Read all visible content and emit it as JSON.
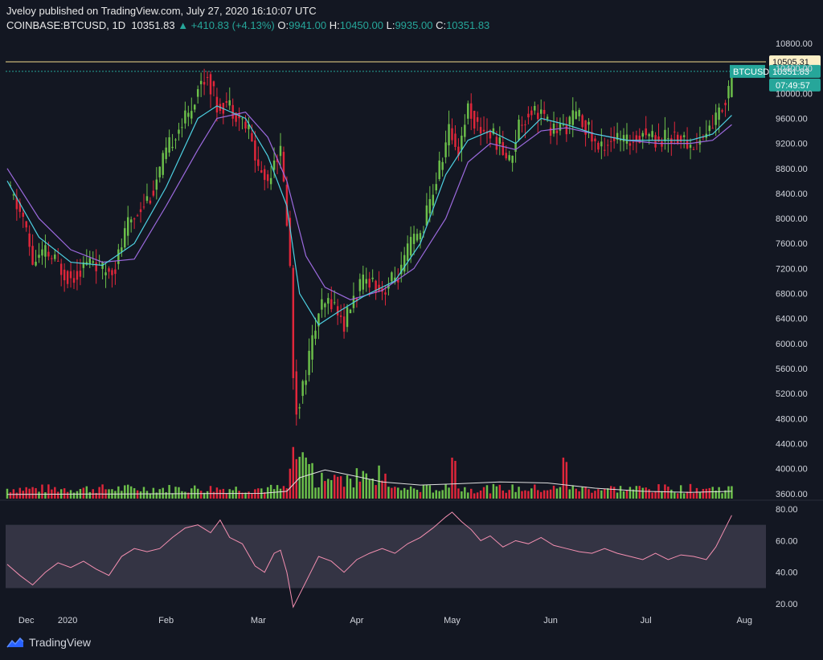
{
  "header": {
    "publish_line": "Jveloy published on TradingView.com, July 27, 2020 16:10:07 UTC",
    "symbol": "COINBASE:BTCUSD, 1D",
    "last": "10351.83",
    "change": "▲ +410.83 (+4.13%)",
    "o_label": "O:",
    "o_value": "9941.00",
    "h_label": "H:",
    "h_value": "10450.00",
    "l_label": "L:",
    "l_value": "9935.00",
    "c_label": "C:",
    "c_value": "10351.83"
  },
  "footer": {
    "brand": "TradingView"
  },
  "colors": {
    "up": "#26a69a",
    "down": "#ef5350",
    "candle_up": "#6cc04a",
    "candle_down": "#e0263a",
    "ma_fast": "#4dd0e1",
    "ma_slow": "#9c6ade",
    "rsi": "#f48fb1",
    "level": "#f0d98c"
  },
  "chart_data": {
    "type": "candlestick",
    "price_axis": {
      "ticks": [
        3600,
        4000,
        4400,
        4800,
        5200,
        5600,
        6000,
        6400,
        6800,
        7200,
        7600,
        8000,
        8400,
        8800,
        9200,
        9600,
        10000,
        10400,
        10800
      ],
      "tick_labels": [
        "3600.00",
        "4000.00",
        "4400.00",
        "4800.00",
        "5200.00",
        "5600.00",
        "6000.00",
        "6400.00",
        "6800.00",
        "7200.00",
        "7600.00",
        "8000.00",
        "8400.00",
        "8800.00",
        "9200.00",
        "9600.00",
        "10000.00",
        "10400.00",
        "10800.00"
      ],
      "range": [
        3520,
        10800
      ]
    },
    "time_axis": {
      "labels": [
        "Dec",
        "2020",
        "Feb",
        "Mar",
        "Apr",
        "May",
        "Jun",
        "Jul",
        "Aug"
      ],
      "label_day_index": [
        6,
        19,
        50,
        79,
        110,
        140,
        171,
        201,
        232
      ],
      "total_days": 238
    },
    "horizontal_level": {
      "value": 10505.31,
      "label": "10505.31"
    },
    "last_price_label": {
      "symbol": "BTCUSD",
      "value": "10351.83",
      "countdown": "07:49:57"
    },
    "price_path": [
      [
        0,
        8500
      ],
      [
        5,
        8000
      ],
      [
        8,
        7300
      ],
      [
        12,
        7450
      ],
      [
        17,
        7200
      ],
      [
        20,
        7050
      ],
      [
        24,
        7250
      ],
      [
        27,
        7350
      ],
      [
        30,
        7150
      ],
      [
        34,
        7250
      ],
      [
        38,
        7900
      ],
      [
        42,
        8200
      ],
      [
        46,
        8450
      ],
      [
        49,
        8900
      ],
      [
        53,
        9400
      ],
      [
        57,
        9650
      ],
      [
        60,
        10100
      ],
      [
        63,
        10300
      ],
      [
        66,
        9800
      ],
      [
        69,
        9850
      ],
      [
        72,
        9700
      ],
      [
        76,
        9400
      ],
      [
        79,
        8800
      ],
      [
        82,
        8600
      ],
      [
        84,
        9000
      ],
      [
        86,
        9050
      ],
      [
        88,
        8000
      ],
      [
        89,
        7200
      ],
      [
        90,
        5500
      ],
      [
        91,
        4950
      ],
      [
        93,
        5300
      ],
      [
        95,
        5800
      ],
      [
        98,
        6500
      ],
      [
        102,
        6700
      ],
      [
        106,
        6300
      ],
      [
        108,
        6600
      ],
      [
        111,
        6900
      ],
      [
        114,
        7050
      ],
      [
        118,
        6850
      ],
      [
        121,
        7000
      ],
      [
        124,
        7150
      ],
      [
        127,
        7600
      ],
      [
        130,
        7750
      ],
      [
        133,
        8250
      ],
      [
        136,
        8800
      ],
      [
        139,
        9400
      ],
      [
        142,
        9100
      ],
      [
        145,
        9800
      ],
      [
        148,
        9450
      ],
      [
        151,
        9400
      ],
      [
        154,
        9250
      ],
      [
        158,
        8900
      ],
      [
        161,
        9500
      ],
      [
        165,
        9750
      ],
      [
        168,
        9700
      ],
      [
        171,
        9400
      ],
      [
        175,
        9450
      ],
      [
        179,
        9650
      ],
      [
        182,
        9500
      ],
      [
        186,
        9100
      ],
      [
        190,
        9300
      ],
      [
        195,
        9200
      ],
      [
        200,
        9400
      ],
      [
        205,
        9250
      ],
      [
        210,
        9350
      ],
      [
        215,
        9150
      ],
      [
        219,
        9300
      ],
      [
        223,
        9600
      ],
      [
        226,
        9900
      ],
      [
        228,
        10351
      ]
    ],
    "ma_fast_path": [
      [
        0,
        8600
      ],
      [
        10,
        7700
      ],
      [
        20,
        7300
      ],
      [
        30,
        7250
      ],
      [
        40,
        7600
      ],
      [
        50,
        8500
      ],
      [
        60,
        9600
      ],
      [
        66,
        9800
      ],
      [
        75,
        9600
      ],
      [
        82,
        9000
      ],
      [
        88,
        8200
      ],
      [
        92,
        6800
      ],
      [
        98,
        6300
      ],
      [
        104,
        6500
      ],
      [
        112,
        6750
      ],
      [
        122,
        7000
      ],
      [
        130,
        7600
      ],
      [
        138,
        8700
      ],
      [
        145,
        9250
      ],
      [
        152,
        9400
      ],
      [
        160,
        9200
      ],
      [
        168,
        9600
      ],
      [
        176,
        9500
      ],
      [
        185,
        9350
      ],
      [
        195,
        9250
      ],
      [
        205,
        9250
      ],
      [
        215,
        9250
      ],
      [
        222,
        9350
      ],
      [
        228,
        9650
      ]
    ],
    "ma_slow_path": [
      [
        0,
        8800
      ],
      [
        10,
        8000
      ],
      [
        20,
        7500
      ],
      [
        30,
        7300
      ],
      [
        40,
        7350
      ],
      [
        50,
        8200
      ],
      [
        60,
        9100
      ],
      [
        66,
        9600
      ],
      [
        75,
        9700
      ],
      [
        82,
        9300
      ],
      [
        88,
        8600
      ],
      [
        94,
        7400
      ],
      [
        100,
        6900
      ],
      [
        108,
        6700
      ],
      [
        118,
        6850
      ],
      [
        128,
        7200
      ],
      [
        138,
        8000
      ],
      [
        145,
        8900
      ],
      [
        152,
        9200
      ],
      [
        160,
        9100
      ],
      [
        168,
        9400
      ],
      [
        176,
        9450
      ],
      [
        185,
        9350
      ],
      [
        195,
        9250
      ],
      [
        205,
        9200
      ],
      [
        215,
        9200
      ],
      [
        222,
        9250
      ],
      [
        228,
        9500
      ]
    ],
    "volume": {
      "range": [
        0,
        1
      ],
      "spike_days": [
        90,
        91,
        92,
        93,
        94,
        95,
        96,
        140,
        141,
        175,
        176
      ],
      "avg_path": [
        [
          0,
          0.08
        ],
        [
          80,
          0.1
        ],
        [
          88,
          0.14
        ],
        [
          92,
          0.4
        ],
        [
          100,
          0.55
        ],
        [
          108,
          0.45
        ],
        [
          118,
          0.32
        ],
        [
          130,
          0.26
        ],
        [
          140,
          0.28
        ],
        [
          155,
          0.32
        ],
        [
          170,
          0.3
        ],
        [
          185,
          0.2
        ],
        [
          200,
          0.14
        ],
        [
          215,
          0.12
        ],
        [
          228,
          0.14
        ]
      ]
    },
    "rsi": {
      "ticks": [
        20,
        40,
        60,
        80
      ],
      "tick_labels": [
        "20.00",
        "40.00",
        "60.00",
        "80.00"
      ],
      "range": [
        15,
        82
      ],
      "band": [
        30,
        70
      ],
      "path": [
        [
          0,
          45
        ],
        [
          4,
          38
        ],
        [
          8,
          32
        ],
        [
          12,
          40
        ],
        [
          16,
          46
        ],
        [
          20,
          43
        ],
        [
          24,
          47
        ],
        [
          28,
          42
        ],
        [
          32,
          38
        ],
        [
          36,
          50
        ],
        [
          40,
          55
        ],
        [
          44,
          53
        ],
        [
          48,
          55
        ],
        [
          52,
          62
        ],
        [
          56,
          68
        ],
        [
          60,
          70
        ],
        [
          64,
          65
        ],
        [
          67,
          73
        ],
        [
          70,
          62
        ],
        [
          74,
          58
        ],
        [
          78,
          44
        ],
        [
          81,
          40
        ],
        [
          84,
          52
        ],
        [
          86,
          54
        ],
        [
          88,
          40
        ],
        [
          90,
          18
        ],
        [
          92,
          26
        ],
        [
          95,
          38
        ],
        [
          98,
          50
        ],
        [
          102,
          47
        ],
        [
          106,
          40
        ],
        [
          110,
          48
        ],
        [
          114,
          52
        ],
        [
          118,
          55
        ],
        [
          122,
          52
        ],
        [
          126,
          58
        ],
        [
          130,
          62
        ],
        [
          134,
          68
        ],
        [
          138,
          75
        ],
        [
          140,
          78
        ],
        [
          143,
          72
        ],
        [
          146,
          67
        ],
        [
          149,
          60
        ],
        [
          152,
          63
        ],
        [
          156,
          56
        ],
        [
          160,
          60
        ],
        [
          164,
          58
        ],
        [
          168,
          62
        ],
        [
          172,
          57
        ],
        [
          176,
          55
        ],
        [
          180,
          53
        ],
        [
          184,
          52
        ],
        [
          188,
          55
        ],
        [
          192,
          52
        ],
        [
          196,
          50
        ],
        [
          200,
          48
        ],
        [
          204,
          52
        ],
        [
          208,
          48
        ],
        [
          212,
          51
        ],
        [
          216,
          50
        ],
        [
          220,
          48
        ],
        [
          223,
          56
        ],
        [
          226,
          68
        ],
        [
          228,
          76
        ]
      ]
    }
  }
}
